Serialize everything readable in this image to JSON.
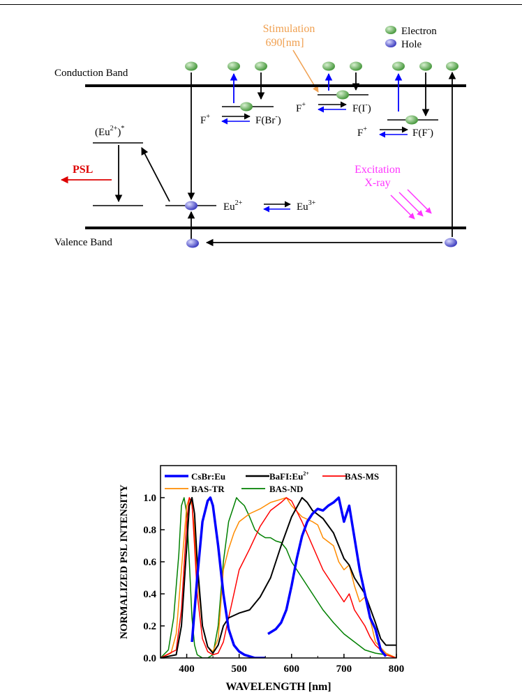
{
  "diagram": {
    "legend": {
      "electron_label": "Electron",
      "hole_label": "Hole"
    },
    "conduction_band": "Conduction Band",
    "valence_band": "Valence Band",
    "stimulation_line1": "Stimulation",
    "stimulation_line2": "690[nm]",
    "excitation_line1": "Excitation",
    "excitation_line2": "X-ray",
    "psl": "PSL",
    "eu_excited": "(Eu",
    "eu_excited_sup": "2+",
    "eu_excited_close": ")",
    "eu_excited_star": "*",
    "eu2": "Eu",
    "eu2_sup": "2+",
    "eu3": "Eu",
    "eu3_sup": "3+",
    "f_plus": "F",
    "f_plus_sup": "+",
    "f_br": "F(Br",
    "f_i": "F(I",
    "f_f": "F(F",
    "minus": "-",
    "close_paren": ")",
    "colors": {
      "electron": "#5cb85c",
      "hole": "#5b5bd6",
      "stimulation": "#f0a050",
      "excitation": "#ff33ff",
      "psl": "#dd0000",
      "blue_arrow": "#0000ff"
    }
  },
  "chart_data": {
    "type": "line",
    "ylabel": "NORMALIZED  PSL  INTENSITY",
    "xlabel": "WAVELENGTH [nm]",
    "xlim": [
      350,
      800
    ],
    "ylim": [
      0,
      1.2
    ],
    "xticks": [
      "400",
      "500",
      "600",
      "700",
      "800"
    ],
    "yticks": [
      "0.0",
      "0.2",
      "0.4",
      "0.6",
      "0.8",
      "1.0"
    ],
    "legend": [
      {
        "name": "CsBr:Eu",
        "color": "#0000ff"
      },
      {
        "name": "BaFI:Eu",
        "sup": "2+",
        "color": "#000000"
      },
      {
        "name": "BAS-MS",
        "color": "#ff0000"
      },
      {
        "name": "BAS-TR",
        "color": "#ff8c00"
      },
      {
        "name": "BAS-ND",
        "color": "#008000"
      }
    ],
    "series": [
      {
        "name": "BAS-ND",
        "color": "#008000",
        "width": 1.5,
        "x": [
          350,
          365,
          375,
          385,
          390,
          395,
          400,
          405,
          410,
          415,
          420,
          430,
          440,
          450,
          460,
          470,
          480,
          490,
          495,
          500,
          510,
          520,
          530,
          540,
          550,
          560,
          570,
          580,
          590,
          600,
          620,
          640,
          660,
          680,
          700,
          720,
          740,
          760,
          780,
          800
        ],
        "y": [
          0.0,
          0.05,
          0.25,
          0.65,
          0.95,
          1.0,
          0.9,
          0.6,
          0.25,
          0.08,
          0.02,
          0.0,
          0.0,
          0.02,
          0.2,
          0.6,
          0.85,
          0.95,
          1.0,
          0.98,
          0.95,
          0.88,
          0.8,
          0.77,
          0.75,
          0.75,
          0.73,
          0.72,
          0.68,
          0.6,
          0.5,
          0.4,
          0.3,
          0.22,
          0.15,
          0.1,
          0.05,
          0.03,
          0.02,
          0.0
        ]
      },
      {
        "name": "BAS-TR",
        "color": "#ff8c00",
        "width": 1.5,
        "x": [
          350,
          370,
          380,
          390,
          400,
          405,
          410,
          415,
          420,
          430,
          440,
          450,
          460,
          470,
          480,
          490,
          500,
          520,
          540,
          560,
          580,
          590,
          600,
          620,
          640,
          650,
          660,
          680,
          690,
          700,
          710,
          720,
          730,
          740,
          760,
          780,
          800
        ],
        "y": [
          0.0,
          0.03,
          0.15,
          0.55,
          0.95,
          1.0,
          0.95,
          0.8,
          0.5,
          0.2,
          0.07,
          0.04,
          0.12,
          0.55,
          0.68,
          0.78,
          0.85,
          0.9,
          0.93,
          0.97,
          0.99,
          1.0,
          0.95,
          0.88,
          0.85,
          0.83,
          0.75,
          0.7,
          0.6,
          0.55,
          0.58,
          0.45,
          0.35,
          0.38,
          0.1,
          0.03,
          0.0
        ]
      },
      {
        "name": "BAS-MS",
        "color": "#ff0000",
        "width": 1.5,
        "x": [
          350,
          380,
          390,
          400,
          405,
          410,
          415,
          420,
          430,
          440,
          450,
          460,
          470,
          480,
          490,
          500,
          520,
          540,
          560,
          580,
          590,
          600,
          620,
          640,
          660,
          680,
          700,
          710,
          720,
          730,
          740,
          750,
          760,
          780,
          800
        ],
        "y": [
          0.0,
          0.05,
          0.3,
          0.85,
          1.0,
          0.97,
          0.7,
          0.4,
          0.12,
          0.04,
          0.02,
          0.03,
          0.1,
          0.25,
          0.4,
          0.55,
          0.68,
          0.82,
          0.92,
          0.97,
          1.0,
          0.98,
          0.85,
          0.7,
          0.55,
          0.45,
          0.35,
          0.4,
          0.3,
          0.25,
          0.2,
          0.13,
          0.08,
          0.02,
          0.0
        ]
      },
      {
        "name": "BaFI:Eu2+",
        "color": "#000000",
        "width": 2,
        "x": [
          350,
          380,
          390,
          400,
          405,
          410,
          415,
          420,
          430,
          440,
          450,
          460,
          470,
          480,
          500,
          520,
          540,
          560,
          580,
          600,
          620,
          630,
          640,
          660,
          680,
          690,
          700,
          710,
          720,
          730,
          740,
          760,
          770,
          780,
          800
        ],
        "y": [
          0.0,
          0.02,
          0.2,
          0.7,
          0.95,
          1.0,
          0.9,
          0.6,
          0.2,
          0.07,
          0.03,
          0.08,
          0.2,
          0.25,
          0.28,
          0.3,
          0.38,
          0.5,
          0.7,
          0.88,
          1.0,
          0.97,
          0.92,
          0.87,
          0.78,
          0.7,
          0.62,
          0.58,
          0.5,
          0.45,
          0.4,
          0.22,
          0.12,
          0.08,
          0.08
        ]
      },
      {
        "name": "CsBr:Eu",
        "color": "#0000ff",
        "width": 3.5,
        "x": [
          410,
          420,
          430,
          440,
          445,
          450,
          460,
          470,
          480,
          490,
          500,
          510,
          520,
          530,
          540,
          550
        ],
        "y": [
          0.1,
          0.5,
          0.85,
          0.98,
          1.0,
          0.95,
          0.7,
          0.4,
          0.18,
          0.08,
          0.04,
          0.02,
          0.01,
          0.0,
          0.0,
          0.0
        ]
      },
      {
        "name": "CsBr:Eu-2",
        "color": "#0000ff",
        "width": 3.5,
        "x": [
          555,
          570,
          580,
          590,
          600,
          610,
          620,
          630,
          640,
          650,
          660,
          670,
          680,
          690,
          700,
          710,
          720,
          730,
          740,
          750,
          760,
          770,
          780
        ],
        "y": [
          0.15,
          0.18,
          0.22,
          0.3,
          0.45,
          0.62,
          0.76,
          0.85,
          0.9,
          0.93,
          0.92,
          0.95,
          0.97,
          1.0,
          0.85,
          0.95,
          0.75,
          0.55,
          0.4,
          0.25,
          0.18,
          0.05,
          0.01
        ]
      }
    ]
  }
}
